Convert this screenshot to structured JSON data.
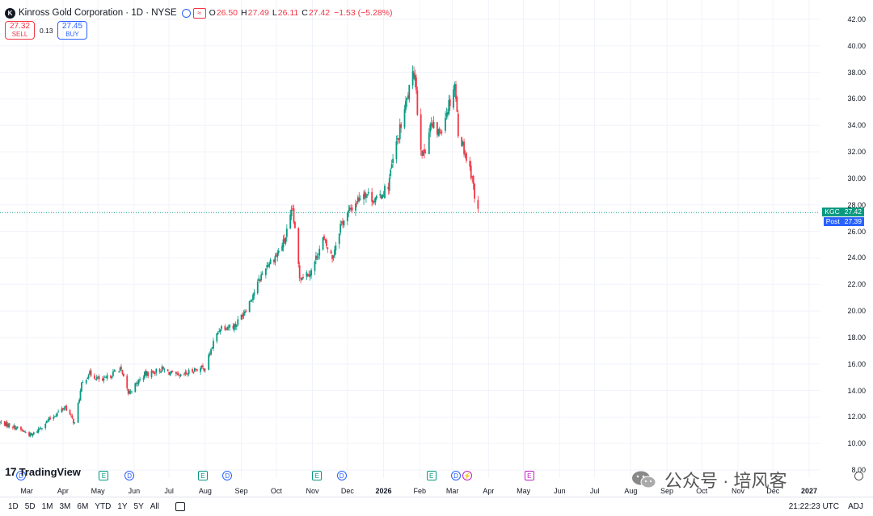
{
  "header": {
    "logo_letter": "K",
    "title": "Kinross Gold Corporation · 1D · NYSE",
    "earnings_icon": "≈",
    "ohlc": {
      "o_label": "O",
      "o": "26.50",
      "h_label": "H",
      "h": "27.49",
      "l_label": "L",
      "l": "26.11",
      "c_label": "C",
      "c": "27.42",
      "change": "−1.53 (−5.28%)"
    },
    "down_color": "#f23645",
    "up_color": "#089981"
  },
  "trade": {
    "sell_price": "27.32",
    "sell_label": "SELL",
    "spread": "0.13",
    "buy_price": "27.45",
    "buy_label": "BUY"
  },
  "branding": {
    "name": "TradingView",
    "mark": "17"
  },
  "price_tags": {
    "last": {
      "symbol": "KGC",
      "value": "27.42",
      "color": "#089981"
    },
    "post": {
      "label": "Post",
      "value": "27.39",
      "color": "#2962ff"
    }
  },
  "events": [
    {
      "type": "dividend",
      "icon": "D",
      "date": "2025-02-24"
    },
    {
      "type": "earnings",
      "icon": "E",
      "date": "2025-05-06"
    },
    {
      "type": "dividend",
      "icon": "D",
      "date": "2025-05-28"
    },
    {
      "type": "earnings",
      "icon": "E",
      "date": "2025-07-30"
    },
    {
      "type": "dividend",
      "icon": "D",
      "date": "2025-08-20"
    },
    {
      "type": "earnings",
      "icon": "E",
      "date": "2025-11-05"
    },
    {
      "type": "dividend",
      "icon": "D",
      "date": "2025-11-26"
    },
    {
      "type": "earnings",
      "icon": "E",
      "date": "2026-02-11"
    },
    {
      "type": "dividend",
      "icon": "D",
      "date": "2026-03-04"
    },
    {
      "type": "split",
      "icon": "⚡",
      "date": "2026-03-14"
    },
    {
      "type": "earnings",
      "icon": "E",
      "date": "2026-05-06"
    }
  ],
  "range_buttons": [
    "1D",
    "5D",
    "1M",
    "3M",
    "6M",
    "YTD",
    "1Y",
    "5Y",
    "All"
  ],
  "status": {
    "time": "21:22:23 UTC",
    "adj": "ADJ"
  },
  "watermark": {
    "text": "公众号 · 培风客"
  },
  "chart_data": {
    "type": "candlestick",
    "title": "Kinross Gold Corporation · 1D · NYSE",
    "x_start": "2025-02-06",
    "x_end": "2027-01-10",
    "ylim": [
      7.4,
      42.6
    ],
    "yticks": [
      8,
      10,
      12,
      14,
      16,
      18,
      20,
      22,
      24,
      26,
      28,
      30,
      32,
      34,
      36,
      38,
      40,
      42
    ],
    "ytick_labels": [
      "8.00",
      "10.00",
      "12.00",
      "14.00",
      "16.00",
      "18.00",
      "20.00",
      "22.00",
      "24.00",
      "26.00",
      "28.00",
      "30.00",
      "32.00",
      "34.00",
      "36.00",
      "38.00",
      "40.00",
      "42.00"
    ],
    "xticks": [
      {
        "date": "2025-03-01",
        "label": "Mar"
      },
      {
        "date": "2025-04-01",
        "label": "Apr"
      },
      {
        "date": "2025-05-01",
        "label": "May"
      },
      {
        "date": "2025-06-01",
        "label": "Jun"
      },
      {
        "date": "2025-07-01",
        "label": "Jul"
      },
      {
        "date": "2025-08-01",
        "label": "Aug"
      },
      {
        "date": "2025-09-01",
        "label": "Sep"
      },
      {
        "date": "2025-10-01",
        "label": "Oct"
      },
      {
        "date": "2025-11-01",
        "label": "Nov"
      },
      {
        "date": "2025-12-01",
        "label": "Dec"
      },
      {
        "date": "2026-01-01",
        "label": "2026",
        "bold": true
      },
      {
        "date": "2026-02-01",
        "label": "Feb"
      },
      {
        "date": "2026-03-01",
        "label": "Mar"
      },
      {
        "date": "2026-04-01",
        "label": "Apr"
      },
      {
        "date": "2026-05-01",
        "label": "May"
      },
      {
        "date": "2026-06-01",
        "label": "Jun"
      },
      {
        "date": "2026-07-01",
        "label": "Jul"
      },
      {
        "date": "2026-08-01",
        "label": "Aug"
      },
      {
        "date": "2026-09-01",
        "label": "Sep"
      },
      {
        "date": "2026-10-01",
        "label": "Oct"
      },
      {
        "date": "2026-11-01",
        "label": "Nov"
      },
      {
        "date": "2026-12-01",
        "label": "Dec"
      },
      {
        "date": "2027-01-01",
        "label": "2027",
        "bold": true
      }
    ],
    "last_price_line": 27.42,
    "grid": true,
    "close_path": [
      [
        "2025-02-06",
        11.6
      ],
      [
        "2025-02-20",
        11.2
      ],
      [
        "2025-03-05",
        10.6
      ],
      [
        "2025-03-20",
        11.8
      ],
      [
        "2025-04-03",
        12.8
      ],
      [
        "2025-04-11",
        11.5
      ],
      [
        "2025-04-17",
        14.4
      ],
      [
        "2025-04-23",
        15.3
      ],
      [
        "2025-05-05",
        14.7
      ],
      [
        "2025-05-20",
        15.7
      ],
      [
        "2025-05-27",
        13.8
      ],
      [
        "2025-06-10",
        15.2
      ],
      [
        "2025-06-25",
        15.6
      ],
      [
        "2025-07-10",
        15.0
      ],
      [
        "2025-07-23",
        15.6
      ],
      [
        "2025-08-01",
        15.7
      ],
      [
        "2025-08-08",
        17.6
      ],
      [
        "2025-08-14",
        18.8
      ],
      [
        "2025-08-27",
        18.9
      ],
      [
        "2025-09-08",
        20.7
      ],
      [
        "2025-09-22",
        23.4
      ],
      [
        "2025-10-01",
        24.2
      ],
      [
        "2025-10-08",
        25.3
      ],
      [
        "2025-10-15",
        27.6
      ],
      [
        "2025-10-21",
        22.6
      ],
      [
        "2025-10-31",
        23.0
      ],
      [
        "2025-11-10",
        25.4
      ],
      [
        "2025-11-18",
        24.0
      ],
      [
        "2025-11-25",
        26.5
      ],
      [
        "2025-12-05",
        27.8
      ],
      [
        "2025-12-15",
        29.0
      ],
      [
        "2025-12-26",
        28.3
      ],
      [
        "2026-01-05",
        29.5
      ],
      [
        "2026-01-10",
        31.8
      ],
      [
        "2026-01-16",
        34.0
      ],
      [
        "2026-01-22",
        36.3
      ],
      [
        "2026-01-28",
        38.2
      ],
      [
        "2026-01-31",
        33.5
      ],
      [
        "2026-02-04",
        31.6
      ],
      [
        "2026-02-10",
        34.0
      ],
      [
        "2026-02-18",
        33.4
      ],
      [
        "2026-02-23",
        34.8
      ],
      [
        "2026-02-28",
        36.2
      ],
      [
        "2026-03-03",
        37.2
      ],
      [
        "2026-03-06",
        33.6
      ],
      [
        "2026-03-11",
        32.2
      ],
      [
        "2026-03-14",
        31.2
      ],
      [
        "2026-03-18",
        30.2
      ],
      [
        "2026-03-20",
        28.5
      ],
      [
        "2026-03-23",
        27.42
      ]
    ]
  }
}
